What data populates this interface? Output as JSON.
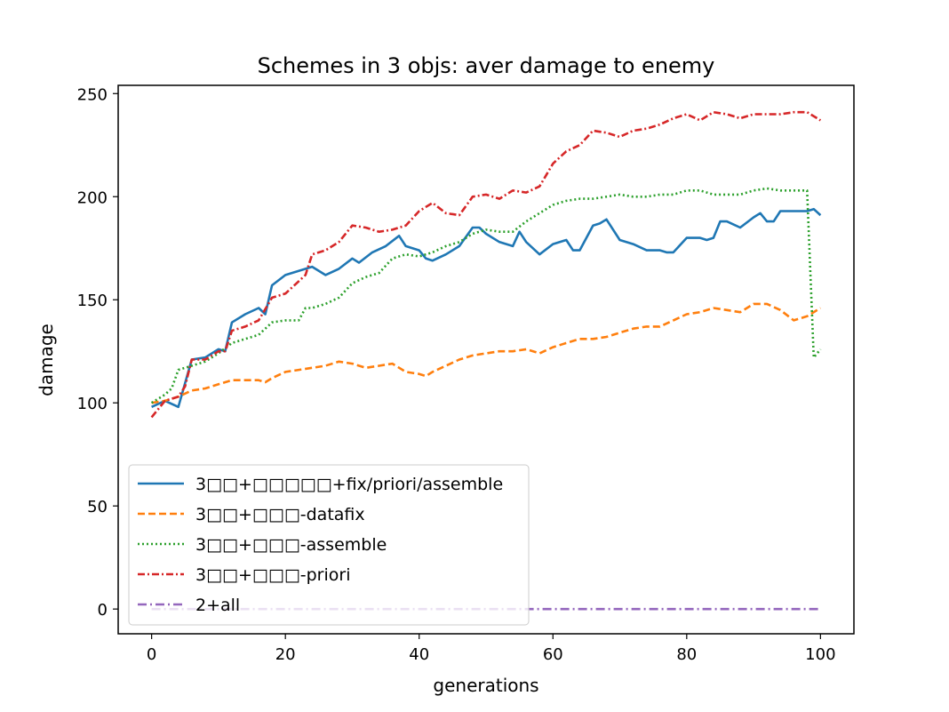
{
  "chart_data": {
    "type": "line",
    "title": "Schemes in 3 objs: aver damage to enemy",
    "xlabel": "generations",
    "ylabel": "damage",
    "xlim": [
      -5,
      105
    ],
    "ylim": [
      -12,
      254
    ],
    "xticks": [
      0,
      20,
      40,
      60,
      80,
      100
    ],
    "yticks": [
      0,
      50,
      100,
      150,
      200,
      250
    ],
    "grid": false,
    "legend_position": "lower-left",
    "series": [
      {
        "name": "3□□+□□□□□+fix/priori/assemble",
        "color": "#1f77b4",
        "dash": "solid",
        "x": [
          0,
          2,
          4,
          6,
          8,
          10,
          11,
          12,
          14,
          16,
          17,
          18,
          20,
          22,
          24,
          26,
          28,
          30,
          31,
          33,
          35,
          37,
          38,
          40,
          41,
          42,
          44,
          46,
          48,
          49,
          50,
          52,
          54,
          55,
          56,
          58,
          60,
          62,
          63,
          64,
          66,
          67,
          68,
          70,
          72,
          74,
          76,
          77,
          78,
          80,
          82,
          83,
          84,
          85,
          86,
          88,
          90,
          91,
          92,
          93,
          94,
          96,
          98,
          99,
          100
        ],
        "values": [
          98,
          101,
          98,
          121,
          122,
          126,
          125,
          139,
          143,
          146,
          143,
          157,
          162,
          164,
          166,
          162,
          165,
          170,
          168,
          173,
          176,
          181,
          176,
          174,
          170,
          169,
          172,
          176,
          185,
          185,
          182,
          178,
          176,
          183,
          178,
          172,
          177,
          179,
          174,
          174,
          186,
          187,
          189,
          179,
          177,
          174,
          174,
          173,
          173,
          180,
          180,
          179,
          180,
          188,
          188,
          185,
          190,
          192,
          188,
          188,
          193,
          193,
          193,
          194,
          191
        ]
      },
      {
        "name": "3□□+□□□-datafix",
        "color": "#ff7f0e",
        "dash": "8,4",
        "x": [
          0,
          2,
          4,
          6,
          8,
          10,
          12,
          14,
          16,
          17,
          18,
          20,
          22,
          24,
          26,
          28,
          30,
          32,
          34,
          36,
          38,
          40,
          41,
          42,
          44,
          46,
          48,
          50,
          52,
          54,
          56,
          58,
          60,
          62,
          64,
          66,
          68,
          70,
          72,
          74,
          76,
          78,
          80,
          82,
          84,
          86,
          88,
          90,
          92,
          94,
          96,
          98,
          100
        ],
        "values": [
          100,
          101,
          103,
          106,
          107,
          109,
          111,
          111,
          111,
          110,
          112,
          115,
          116,
          117,
          118,
          120,
          119,
          117,
          118,
          119,
          115,
          114,
          113,
          115,
          118,
          121,
          123,
          124,
          125,
          125,
          126,
          124,
          127,
          129,
          131,
          131,
          132,
          134,
          136,
          137,
          137,
          140,
          143,
          144,
          146,
          145,
          144,
          148,
          148,
          145,
          140,
          142,
          146
        ]
      },
      {
        "name": "3□□+□□□-assemble",
        "color": "#2ca02c",
        "dash": "2,3",
        "x": [
          0,
          2,
          3,
          4,
          6,
          8,
          10,
          12,
          14,
          16,
          18,
          20,
          22,
          23,
          24,
          26,
          28,
          30,
          32,
          34,
          36,
          38,
          40,
          42,
          44,
          46,
          48,
          50,
          52,
          54,
          56,
          58,
          60,
          62,
          64,
          66,
          68,
          70,
          72,
          74,
          76,
          78,
          80,
          82,
          84,
          86,
          88,
          90,
          92,
          94,
          96,
          98,
          99,
          100
        ],
        "values": [
          100,
          104,
          107,
          116,
          118,
          120,
          124,
          129,
          131,
          133,
          139,
          140,
          140,
          146,
          146,
          148,
          151,
          158,
          161,
          163,
          170,
          172,
          171,
          173,
          176,
          178,
          182,
          184,
          183,
          183,
          188,
          192,
          196,
          198,
          199,
          199,
          200,
          201,
          200,
          200,
          201,
          201,
          203,
          203,
          201,
          201,
          201,
          203,
          204,
          203,
          203,
          203,
          122,
          126
        ]
      },
      {
        "name": "3□□+□□□-priori",
        "color": "#d62728",
        "dash": "8,3,2,3",
        "x": [
          0,
          2,
          4,
          5,
          6,
          8,
          10,
          11,
          12,
          14,
          16,
          18,
          20,
          22,
          23,
          24,
          26,
          28,
          30,
          32,
          34,
          36,
          38,
          40,
          42,
          44,
          46,
          48,
          50,
          52,
          54,
          56,
          58,
          60,
          62,
          64,
          66,
          68,
          70,
          72,
          74,
          76,
          78,
          80,
          82,
          84,
          86,
          88,
          90,
          92,
          94,
          96,
          98,
          100
        ],
        "values": [
          93,
          101,
          103,
          108,
          121,
          121,
          125,
          125,
          135,
          137,
          140,
          151,
          153,
          159,
          162,
          172,
          174,
          178,
          186,
          185,
          183,
          184,
          186,
          193,
          197,
          192,
          191,
          200,
          201,
          199,
          203,
          202,
          205,
          216,
          222,
          225,
          232,
          231,
          229,
          232,
          233,
          235,
          238,
          240,
          237,
          241,
          240,
          238,
          240,
          240,
          240,
          241,
          241,
          237
        ]
      },
      {
        "name": "2+all",
        "color": "#9467bd",
        "dash": "10,4,2,4",
        "x": [
          0,
          100
        ],
        "values": [
          0,
          0
        ]
      }
    ]
  }
}
